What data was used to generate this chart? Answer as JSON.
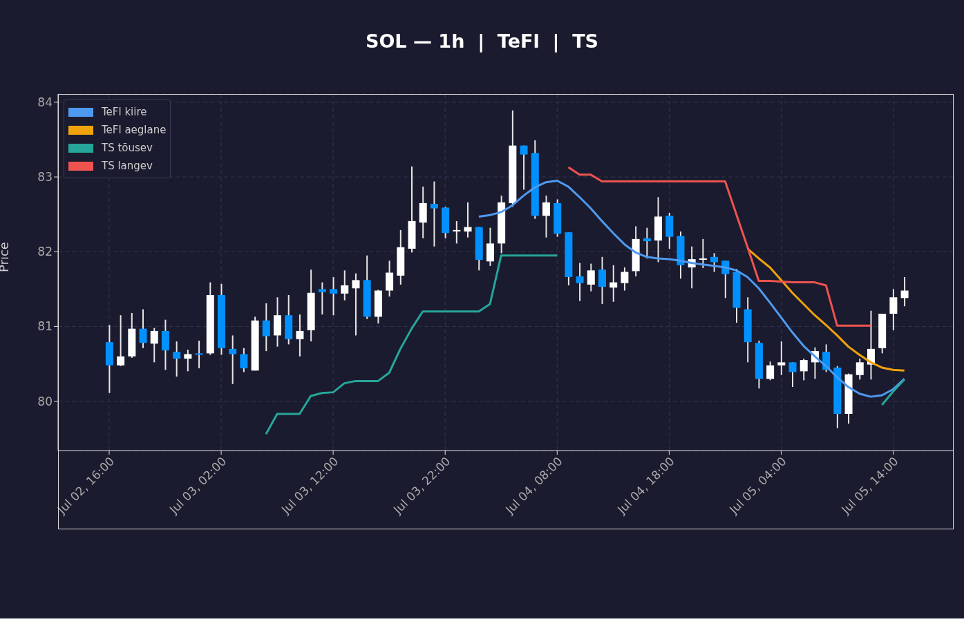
{
  "chart_data": {
    "type": "candlestick",
    "title": "SOL — 1h  |  TeFl  |  TS",
    "ylabel": "Price",
    "x": [
      "--07-02T16:00",
      "--07-02T17:00",
      "--07-02T18:00",
      "--07-02T19:00",
      "--07-02T20:00",
      "--07-02T21:00",
      "--07-02T22:00",
      "--07-02T23:00",
      "--07-03T00:00",
      "--07-03T01:00",
      "--07-03T02:00",
      "--07-03T03:00",
      "--07-03T04:00",
      "--07-03T05:00",
      "--07-03T06:00",
      "--07-03T07:00",
      "--07-03T08:00",
      "--07-03T09:00",
      "--07-03T10:00",
      "--07-03T11:00",
      "--07-03T12:00",
      "--07-03T13:00",
      "--07-03T14:00",
      "--07-03T15:00",
      "--07-03T16:00",
      "--07-03T17:00",
      "--07-03T18:00",
      "--07-03T19:00",
      "--07-03T20:00",
      "--07-03T21:00",
      "--07-03T22:00",
      "--07-03T23:00",
      "--07-04T00:00",
      "--07-04T01:00",
      "--07-04T02:00",
      "--07-04T03:00",
      "--07-04T04:00",
      "--07-04T05:00",
      "--07-04T06:00",
      "--07-04T07:00",
      "--07-04T08:00",
      "--07-04T09:00",
      "--07-04T10:00",
      "--07-04T11:00",
      "--07-04T12:00",
      "--07-04T13:00",
      "--07-04T14:00",
      "--07-04T15:00",
      "--07-04T16:00",
      "--07-04T17:00",
      "--07-04T18:00",
      "--07-04T19:00",
      "--07-04T20:00",
      "--07-04T21:00",
      "--07-04T22:00",
      "--07-04T23:00",
      "--07-05T00:00",
      "--07-05T01:00",
      "--07-05T02:00",
      "--07-05T03:00",
      "--07-05T04:00",
      "--07-05T05:00",
      "--07-05T06:00",
      "--07-05T07:00",
      "--07-05T08:00",
      "--07-05T09:00",
      "--07-05T10:00",
      "--07-05T11:00",
      "--07-05T12:00",
      "--07-05T13:00",
      "--07-05T14:00",
      "--07-05T15:00"
    ],
    "ohlc": [
      [
        80.79,
        81.02,
        80.11,
        80.48
      ],
      [
        80.48,
        81.15,
        80.47,
        80.6
      ],
      [
        80.6,
        81.18,
        80.58,
        80.97
      ],
      [
        80.97,
        81.23,
        80.71,
        80.78
      ],
      [
        80.77,
        80.98,
        80.52,
        80.94
      ],
      [
        80.94,
        81.09,
        80.42,
        80.68
      ],
      [
        80.66,
        80.8,
        80.33,
        80.57
      ],
      [
        80.57,
        80.69,
        80.4,
        80.63
      ],
      [
        80.64,
        80.81,
        80.44,
        80.64
      ],
      [
        80.64,
        81.59,
        80.62,
        81.42
      ],
      [
        81.42,
        81.57,
        80.62,
        80.71
      ],
      [
        80.7,
        80.88,
        80.23,
        80.63
      ],
      [
        80.63,
        80.71,
        80.39,
        80.44
      ],
      [
        80.41,
        81.13,
        80.41,
        81.08
      ],
      [
        81.08,
        81.31,
        80.67,
        80.87
      ],
      [
        80.88,
        81.39,
        80.73,
        81.15
      ],
      [
        81.15,
        81.42,
        80.76,
        80.83
      ],
      [
        80.83,
        81.16,
        80.6,
        80.94
      ],
      [
        80.95,
        81.76,
        80.8,
        81.45
      ],
      [
        81.5,
        81.59,
        81.16,
        81.46
      ],
      [
        81.5,
        81.66,
        81.15,
        81.44
      ],
      [
        81.44,
        81.75,
        81.35,
        81.55
      ],
      [
        81.51,
        81.71,
        80.88,
        81.62
      ],
      [
        81.62,
        81.95,
        81.1,
        81.13
      ],
      [
        81.13,
        81.49,
        81.04,
        81.48
      ],
      [
        81.48,
        81.88,
        81.4,
        81.72
      ],
      [
        81.68,
        82.29,
        81.56,
        82.06
      ],
      [
        82.04,
        83.14,
        81.99,
        82.41
      ],
      [
        82.39,
        82.87,
        82.18,
        82.65
      ],
      [
        82.64,
        82.94,
        82.07,
        82.58
      ],
      [
        82.59,
        82.6,
        82.18,
        82.25
      ],
      [
        82.28,
        82.41,
        82.11,
        82.29
      ],
      [
        82.27,
        82.66,
        82.19,
        82.33
      ],
      [
        82.33,
        82.33,
        81.75,
        81.89
      ],
      [
        81.87,
        82.32,
        81.81,
        82.11
      ],
      [
        82.11,
        82.75,
        81.98,
        82.66
      ],
      [
        82.65,
        83.89,
        82.6,
        83.42
      ],
      [
        83.42,
        83.42,
        82.83,
        83.3
      ],
      [
        83.32,
        83.49,
        82.44,
        82.48
      ],
      [
        82.48,
        82.75,
        82.19,
        82.66
      ],
      [
        82.65,
        82.7,
        82.2,
        82.24
      ],
      [
        82.26,
        82.26,
        81.55,
        81.66
      ],
      [
        81.67,
        81.85,
        81.34,
        81.58
      ],
      [
        81.56,
        81.84,
        81.47,
        81.75
      ],
      [
        81.76,
        81.93,
        81.3,
        81.53
      ],
      [
        81.52,
        81.82,
        81.33,
        81.59
      ],
      [
        81.58,
        81.79,
        81.48,
        81.73
      ],
      [
        81.74,
        82.34,
        81.67,
        82.17
      ],
      [
        82.18,
        82.32,
        81.91,
        82.14
      ],
      [
        82.15,
        82.73,
        81.86,
        82.47
      ],
      [
        82.48,
        82.52,
        82.04,
        82.2
      ],
      [
        82.21,
        82.27,
        81.64,
        81.82
      ],
      [
        81.79,
        82.07,
        81.51,
        81.9
      ],
      [
        81.9,
        82.17,
        81.78,
        81.91
      ],
      [
        81.93,
        81.98,
        81.73,
        81.86
      ],
      [
        81.88,
        81.88,
        81.38,
        81.7
      ],
      [
        81.73,
        81.77,
        81.05,
        81.25
      ],
      [
        81.23,
        81.39,
        80.52,
        80.79
      ],
      [
        80.78,
        80.81,
        80.17,
        80.3
      ],
      [
        80.3,
        80.53,
        80.28,
        80.48
      ],
      [
        80.48,
        80.8,
        80.35,
        80.52
      ],
      [
        80.52,
        80.52,
        80.19,
        80.39
      ],
      [
        80.4,
        80.57,
        80.28,
        80.55
      ],
      [
        80.52,
        80.72,
        80.3,
        80.67
      ],
      [
        80.66,
        80.76,
        80.39,
        80.42
      ],
      [
        80.45,
        80.47,
        79.64,
        79.83
      ],
      [
        79.83,
        80.37,
        79.7,
        80.36
      ],
      [
        80.35,
        80.57,
        80.29,
        80.52
      ],
      [
        80.49,
        81.21,
        80.29,
        80.7
      ],
      [
        80.71,
        81.17,
        80.64,
        81.17
      ],
      [
        81.17,
        81.5,
        80.95,
        81.39
      ],
      [
        81.38,
        81.66,
        81.27,
        81.48
      ]
    ],
    "colors": [
      "#0091ff",
      "#ffffff",
      "#ffffff",
      "#0091ff",
      "#ffffff",
      "#0091ff",
      "#0091ff",
      "#ffffff",
      "#0091ff",
      "#ffffff",
      "#0091ff",
      "#0091ff",
      "#0091ff",
      "#ffffff",
      "#0091ff",
      "#ffffff",
      "#0091ff",
      "#ffffff",
      "#ffffff",
      "#0091ff",
      "#0091ff",
      "#ffffff",
      "#ffffff",
      "#0091ff",
      "#ffffff",
      "#ffffff",
      "#ffffff",
      "#ffffff",
      "#ffffff",
      "#0091ff",
      "#0091ff",
      "#ffffff",
      "#ffffff",
      "#0091ff",
      "#ffffff",
      "#ffffff",
      "#ffffff",
      "#0091ff",
      "#0091ff",
      "#ffffff",
      "#0091ff",
      "#0091ff",
      "#0091ff",
      "#ffffff",
      "#0091ff",
      "#ffffff",
      "#ffffff",
      "#ffffff",
      "#0091ff",
      "#ffffff",
      "#0091ff",
      "#0091ff",
      "#ffffff",
      "#ffffff",
      "#0091ff",
      "#0091ff",
      "#0091ff",
      "#0091ff",
      "#0091ff",
      "#ffffff",
      "#ffffff",
      "#0091ff",
      "#ffffff",
      "#ffffff",
      "#0091ff",
      "#0091ff",
      "#ffffff",
      "#ffffff",
      "#ffffff",
      "#ffffff",
      "#ffffff",
      "#ffffff"
    ],
    "series": [
      {
        "type": "line",
        "name": "TeFl kiire",
        "color": "#4e9af1",
        "values": [
          null,
          null,
          null,
          null,
          null,
          null,
          null,
          null,
          null,
          null,
          null,
          null,
          null,
          null,
          null,
          null,
          null,
          null,
          null,
          null,
          null,
          null,
          null,
          null,
          null,
          null,
          null,
          null,
          null,
          null,
          null,
          null,
          null,
          82.47,
          82.49,
          82.53,
          82.62,
          82.75,
          82.86,
          82.93,
          82.95,
          82.87,
          82.73,
          82.58,
          82.41,
          82.25,
          82.1,
          81.99,
          81.93,
          81.91,
          81.9,
          81.88,
          81.85,
          81.83,
          81.81,
          81.79,
          81.75,
          81.66,
          81.51,
          81.32,
          81.12,
          80.92,
          80.74,
          80.6,
          80.47,
          80.32,
          80.19,
          80.1,
          80.06,
          80.08,
          80.16,
          80.3
        ]
      },
      {
        "type": "line",
        "name": "TeFl aeglane",
        "color": "#f0a30a",
        "values": [
          null,
          null,
          null,
          null,
          null,
          null,
          null,
          null,
          null,
          null,
          null,
          null,
          null,
          null,
          null,
          null,
          null,
          null,
          null,
          null,
          null,
          null,
          null,
          null,
          null,
          null,
          null,
          null,
          null,
          null,
          null,
          null,
          null,
          null,
          null,
          null,
          null,
          null,
          null,
          null,
          null,
          null,
          null,
          null,
          null,
          null,
          null,
          null,
          null,
          null,
          null,
          null,
          null,
          null,
          null,
          null,
          null,
          82.04,
          81.91,
          81.79,
          81.62,
          81.45,
          81.3,
          81.15,
          81.02,
          80.88,
          80.73,
          80.62,
          80.52,
          80.45,
          80.42,
          80.41
        ]
      },
      {
        "type": "line",
        "name": "TS tõusev",
        "color": "#26a69a",
        "values": [
          null,
          null,
          null,
          null,
          null,
          null,
          null,
          null,
          null,
          null,
          null,
          null,
          null,
          null,
          79.56,
          79.83,
          79.83,
          79.83,
          80.07,
          80.11,
          80.12,
          80.24,
          80.27,
          80.27,
          80.27,
          80.38,
          80.7,
          80.97,
          81.2,
          81.2,
          81.2,
          81.2,
          81.2,
          81.2,
          81.3,
          81.95,
          81.95,
          81.95,
          81.95,
          81.95,
          81.95,
          null,
          null,
          null,
          null,
          null,
          null,
          null,
          null,
          null,
          null,
          null,
          null,
          null,
          null,
          null,
          null,
          null,
          null,
          null,
          null,
          null,
          null,
          null,
          null,
          null,
          null,
          null,
          null,
          79.95,
          80.13,
          80.29
        ]
      },
      {
        "type": "line",
        "name": "TS langev",
        "color": "#ef5350",
        "values": [
          null,
          null,
          null,
          null,
          null,
          null,
          null,
          null,
          null,
          null,
          null,
          null,
          null,
          null,
          null,
          null,
          null,
          null,
          null,
          null,
          null,
          null,
          null,
          null,
          null,
          null,
          null,
          null,
          null,
          null,
          null,
          null,
          null,
          null,
          null,
          null,
          null,
          null,
          null,
          null,
          null,
          83.13,
          83.03,
          83.03,
          82.94,
          82.94,
          82.94,
          82.94,
          82.94,
          82.94,
          82.94,
          82.94,
          82.94,
          82.94,
          82.94,
          82.94,
          82.5,
          82.06,
          81.61,
          81.61,
          81.6,
          81.59,
          81.59,
          81.59,
          81.55,
          81.01,
          81.01,
          81.01,
          81.01,
          null,
          null,
          null
        ]
      }
    ],
    "xlim": [
      "--07-02T11:26",
      "--07-05T19:24"
    ],
    "xticks": [
      {
        "value": "--07-02T16:00",
        "label": "Jul 02, 16:00"
      },
      {
        "value": "--07-03T02:00",
        "label": "Jul 03, 02:00"
      },
      {
        "value": "--07-03T12:00",
        "label": "Jul 03, 12:00"
      },
      {
        "value": "--07-03T22:00",
        "label": "Jul 03, 22:00"
      },
      {
        "value": "--07-04T08:00",
        "label": "Jul 04, 08:00"
      },
      {
        "value": "--07-04T18:00",
        "label": "Jul 04, 18:00"
      },
      {
        "value": "--07-05T04:00",
        "label": "Jul 05, 04:00"
      },
      {
        "value": "--07-05T14:00",
        "label": "Jul 05, 14:00"
      }
    ],
    "ylim": [
      79.34,
      84.11
    ],
    "yticks": [
      80,
      81,
      82,
      83,
      84
    ],
    "grid": true,
    "legend": "top left"
  }
}
